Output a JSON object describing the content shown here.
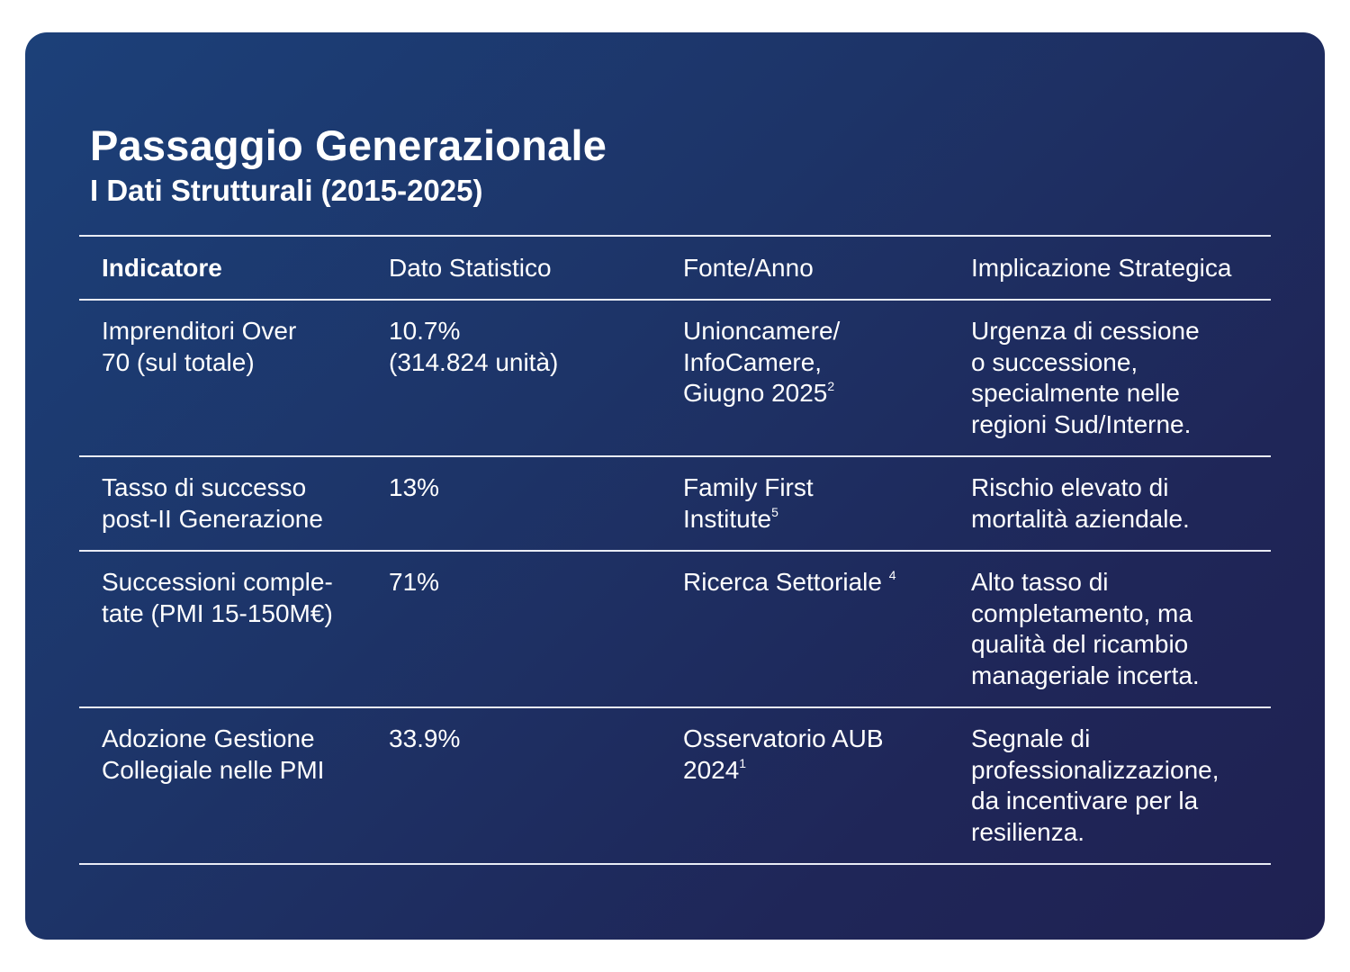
{
  "title": "Passaggio Generazionale",
  "subtitle": "I Dati Strutturali (2015-2025)",
  "table": {
    "headers": [
      "Indicatore",
      "Dato Statistico",
      "Fonte/Anno",
      "Implicazione Strategica"
    ],
    "rows": [
      {
        "indicatore": "Imprenditori Over\n70 (sul totale)",
        "dato": "10.7%\n(314.824 unità)",
        "fonte": "Unioncamere/\nInfoCamere,\nGiugno 2025",
        "fonte_note": "2",
        "implicazione": "Urgenza di cessione\no successione,\nspecialmente nelle\nregioni Sud/Interne."
      },
      {
        "indicatore": "Tasso di successo\npost-II Generazione",
        "dato": "13%",
        "fonte": "Family First\nInstitute",
        "fonte_note": "5",
        "implicazione": "Rischio elevato di\nmortalità aziendale."
      },
      {
        "indicatore": "Successioni comple-\ntate (PMI 15-150M€)",
        "dato": "71%",
        "fonte": "Ricerca Settoriale ",
        "fonte_note": "4",
        "implicazione": "Alto tasso di\ncompletamento, ma\nqualità del ricambio\nmanageriale incerta."
      },
      {
        "indicatore": "Adozione Gestione\nCollegiale nelle PMI",
        "dato": "33.9%",
        "fonte": "Osservatorio AUB\n2024",
        "fonte_note": "1",
        "implicazione": "Segnale di\nprofessionalizzazione,\nda incentivare per la\nresilienza."
      }
    ]
  }
}
